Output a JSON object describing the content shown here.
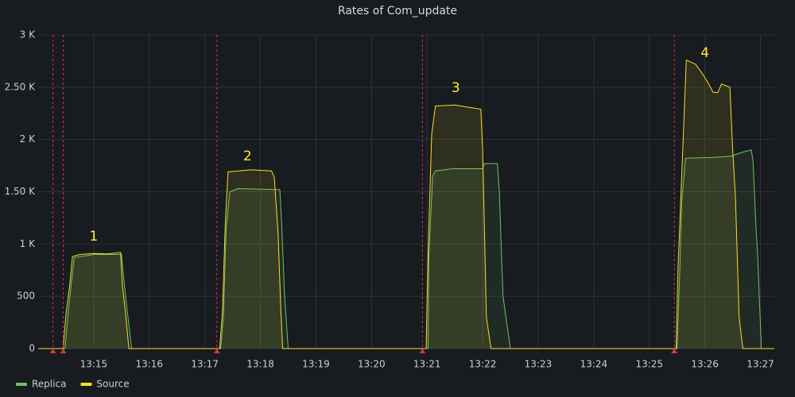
{
  "chart_data": {
    "type": "line",
    "title": "Rates of Com_update",
    "xlim": [
      "13:14:00",
      "13:27:15"
    ],
    "xticks": [
      "13:15",
      "13:16",
      "13:17",
      "13:18",
      "13:19",
      "13:20",
      "13:21",
      "13:22",
      "13:23",
      "13:24",
      "13:25",
      "13:26",
      "13:27"
    ],
    "ylim": [
      0,
      3000
    ],
    "yticks": [
      0,
      500,
      {
        "value": 1000,
        "label": "1 K"
      },
      {
        "value": 1500,
        "label": "1.50 K"
      },
      {
        "value": 2000,
        "label": "2 K"
      },
      {
        "value": 2500,
        "label": "2.50 K"
      },
      {
        "value": 3000,
        "label": "3 K"
      }
    ],
    "grid": true,
    "legend": "bottom-left",
    "annotation_times": [
      "13:14:16",
      "13:14:27",
      "13:17:13",
      "13:20:55",
      "13:25:27"
    ],
    "annotation_color": "#e02f44",
    "annotations": [
      {
        "text": "1",
        "x": "13:15:00",
        "y": 1070
      },
      {
        "text": "2",
        "x": "13:17:46",
        "y": 1837
      },
      {
        "text": "3",
        "x": "13:21:31",
        "y": 2490
      },
      {
        "text": "4",
        "x": "13:26:00",
        "y": 2825
      }
    ],
    "series": [
      {
        "name": "Replica",
        "color": "#73bf69",
        "x": [
          "13:14:00",
          "13:14:29",
          "13:14:32",
          "13:14:36",
          "13:14:39",
          "13:15:00",
          "13:15:30",
          "13:15:33",
          "13:15:36",
          "13:15:39",
          "13:15:41",
          "13:17:17",
          "13:17:20",
          "13:17:23",
          "13:17:27",
          "13:17:36",
          "13:18:21",
          "13:18:23",
          "13:18:26",
          "13:18:30",
          "13:21:01",
          "13:21:02",
          "13:21:06",
          "13:21:09",
          "13:21:28",
          "13:22:00",
          "13:22:02",
          "13:22:16",
          "13:22:18",
          "13:22:22",
          "13:22:30",
          "13:25:30",
          "13:25:33",
          "13:25:35",
          "13:25:39",
          "13:26:11",
          "13:26:28",
          "13:26:41",
          "13:26:50",
          "13:26:52",
          "13:26:55",
          "13:26:57",
          "13:27:01",
          "13:27:15"
        ],
        "values": [
          0,
          0,
          300,
          640,
          870,
          900,
          900,
          620,
          380,
          150,
          0,
          0,
          300,
          1150,
          1500,
          1530,
          1520,
          1200,
          530,
          0,
          0,
          880,
          1650,
          1700,
          1720,
          1720,
          1770,
          1770,
          1500,
          500,
          0,
          0,
          780,
          1400,
          1820,
          1830,
          1840,
          1880,
          1900,
          1800,
          1200,
          900,
          0,
          0
        ]
      },
      {
        "name": "Source",
        "color": "#fade2a",
        "x": [
          "13:14:00",
          "13:14:27",
          "13:14:30",
          "13:14:34",
          "13:14:37",
          "13:14:45",
          "13:15:00",
          "13:15:15",
          "13:15:29",
          "13:15:31",
          "13:15:34",
          "13:15:38",
          "13:17:16",
          "13:17:19",
          "13:17:22",
          "13:17:25",
          "13:17:50",
          "13:18:12",
          "13:18:15",
          "13:18:19",
          "13:18:22",
          "13:18:24",
          "13:20:59",
          "13:21:01",
          "13:21:05",
          "13:21:09",
          "13:21:30",
          "13:21:58",
          "13:22:00",
          "13:22:04",
          "13:22:09",
          "13:25:29",
          "13:25:31",
          "13:25:35",
          "13:25:40",
          "13:25:50",
          "13:25:58",
          "13:26:03",
          "13:26:09",
          "13:26:14",
          "13:26:18",
          "13:26:27",
          "13:26:30",
          "13:26:33",
          "13:26:37",
          "13:26:41",
          "13:27:15"
        ],
        "values": [
          0,
          0,
          320,
          600,
          880,
          900,
          910,
          905,
          920,
          600,
          370,
          0,
          0,
          350,
          1170,
          1690,
          1710,
          1700,
          1640,
          1120,
          380,
          0,
          0,
          900,
          2050,
          2320,
          2330,
          2290,
          1900,
          300,
          0,
          0,
          780,
          1650,
          2760,
          2720,
          2620,
          2550,
          2450,
          2450,
          2530,
          2500,
          1900,
          1450,
          300,
          0,
          0
        ]
      }
    ]
  }
}
